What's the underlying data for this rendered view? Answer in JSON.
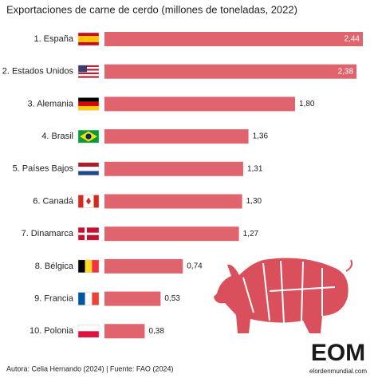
{
  "chart_data": {
    "type": "bar",
    "orientation": "horizontal",
    "title": "Exportaciones de carne de cerdo (millones de toneladas, 2022)",
    "categories": [
      "1. España",
      "2. Estados Unidos",
      "3. Alemania",
      "4. Brasil",
      "5. Países Bajos",
      "6. Canadá",
      "7. Dinamarca",
      "8. Bélgica",
      "9. Francia",
      "10. Polonia"
    ],
    "values": [
      2.44,
      2.38,
      1.8,
      1.36,
      1.31,
      1.3,
      1.27,
      0.74,
      0.53,
      0.38
    ],
    "value_labels": [
      "2,44",
      "2,38",
      "1,80",
      "1,36",
      "1,31",
      "1,30",
      "1,27",
      "0,74",
      "0,53",
      "0,38"
    ],
    "color": "#e0646e",
    "footer": "Autora: Celia Hernando (2024) | Fuente: FAO (2024)",
    "logo": "EOM",
    "logo_url": "elordenmundial.com"
  }
}
